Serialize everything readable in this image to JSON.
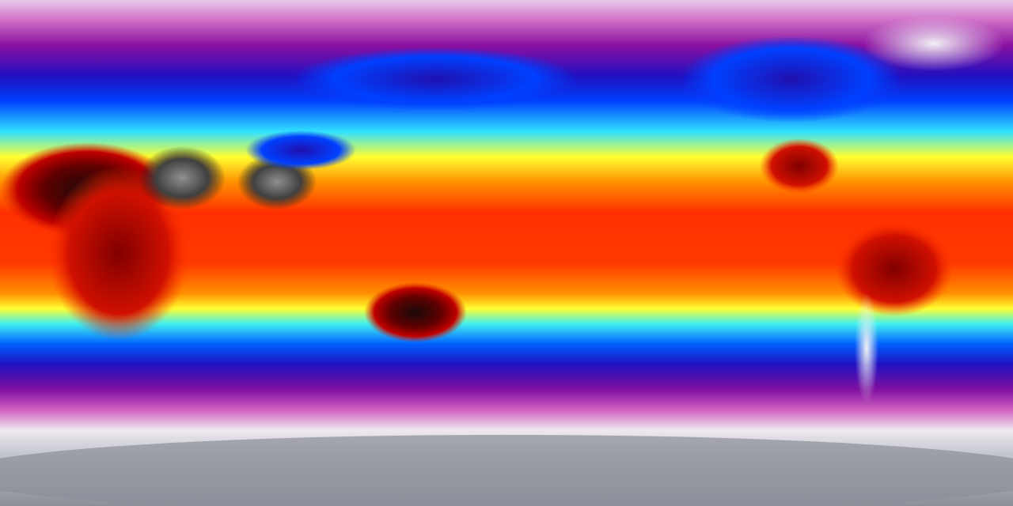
{
  "map": {
    "projection": "equirectangular",
    "colormap": [
      "#f4f0f4",
      "#d060c8",
      "#9010a0",
      "#2010c0",
      "#0040ff",
      "#30e0ff",
      "#ffff30",
      "#ffa000",
      "#ff3000",
      "#c00000",
      "#300000",
      "#606060"
    ],
    "ice_color": "#8a8f99"
  }
}
